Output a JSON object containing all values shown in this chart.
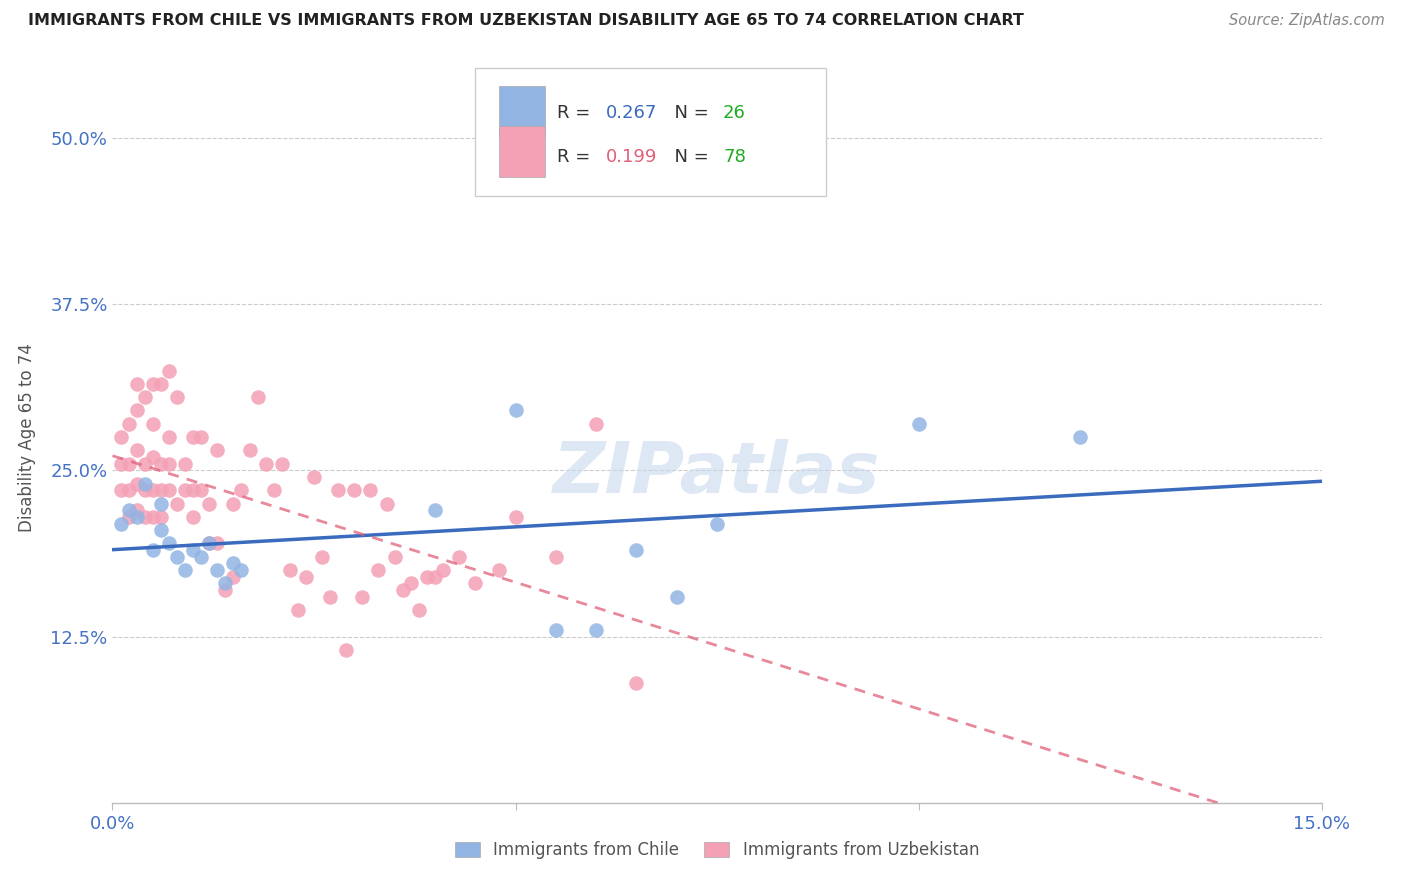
{
  "title": "IMMIGRANTS FROM CHILE VS IMMIGRANTS FROM UZBEKISTAN DISABILITY AGE 65 TO 74 CORRELATION CHART",
  "source": "Source: ZipAtlas.com",
  "ylabel": "Disability Age 65 to 74",
  "xlim": [
    0.0,
    0.15
  ],
  "ylim": [
    0.0,
    0.55
  ],
  "xticks": [
    0.0,
    0.05,
    0.1,
    0.15
  ],
  "xticklabels": [
    "0.0%",
    "",
    "",
    "15.0%"
  ],
  "yticks": [
    0.0,
    0.125,
    0.25,
    0.375,
    0.5
  ],
  "yticklabels": [
    "",
    "12.5%",
    "25.0%",
    "37.5%",
    "50.0%"
  ],
  "chile_R": 0.267,
  "chile_N": 26,
  "uzbekistan_R": 0.199,
  "uzbekistan_N": 78,
  "chile_color": "#92b4e3",
  "uzbekistan_color": "#f4a0b5",
  "chile_line_color": "#3a6bbf",
  "uzbekistan_line_color": "#e0607a",
  "watermark": "ZIPatlas",
  "chile_x": [
    0.001,
    0.002,
    0.003,
    0.004,
    0.005,
    0.006,
    0.006,
    0.007,
    0.008,
    0.009,
    0.01,
    0.011,
    0.012,
    0.013,
    0.014,
    0.015,
    0.016,
    0.04,
    0.05,
    0.055,
    0.06,
    0.065,
    0.07,
    0.075,
    0.1,
    0.12
  ],
  "chile_y": [
    0.21,
    0.22,
    0.215,
    0.24,
    0.19,
    0.205,
    0.225,
    0.195,
    0.185,
    0.175,
    0.19,
    0.185,
    0.195,
    0.175,
    0.165,
    0.18,
    0.175,
    0.22,
    0.295,
    0.13,
    0.13,
    0.19,
    0.155,
    0.21,
    0.285,
    0.275
  ],
  "uzbekistan_x": [
    0.001,
    0.001,
    0.001,
    0.002,
    0.002,
    0.002,
    0.002,
    0.003,
    0.003,
    0.003,
    0.003,
    0.003,
    0.004,
    0.004,
    0.004,
    0.004,
    0.005,
    0.005,
    0.005,
    0.005,
    0.005,
    0.006,
    0.006,
    0.006,
    0.006,
    0.007,
    0.007,
    0.007,
    0.007,
    0.008,
    0.008,
    0.009,
    0.009,
    0.01,
    0.01,
    0.01,
    0.011,
    0.011,
    0.012,
    0.012,
    0.013,
    0.013,
    0.014,
    0.015,
    0.015,
    0.016,
    0.017,
    0.018,
    0.019,
    0.02,
    0.021,
    0.022,
    0.023,
    0.024,
    0.025,
    0.026,
    0.027,
    0.028,
    0.029,
    0.03,
    0.031,
    0.032,
    0.033,
    0.034,
    0.035,
    0.036,
    0.037,
    0.038,
    0.039,
    0.04,
    0.041,
    0.043,
    0.045,
    0.048,
    0.05,
    0.055,
    0.06,
    0.065
  ],
  "uzbekistan_y": [
    0.235,
    0.255,
    0.275,
    0.215,
    0.235,
    0.255,
    0.285,
    0.22,
    0.24,
    0.265,
    0.295,
    0.315,
    0.215,
    0.235,
    0.255,
    0.305,
    0.215,
    0.235,
    0.26,
    0.285,
    0.315,
    0.215,
    0.235,
    0.255,
    0.315,
    0.235,
    0.255,
    0.275,
    0.325,
    0.225,
    0.305,
    0.235,
    0.255,
    0.215,
    0.235,
    0.275,
    0.235,
    0.275,
    0.195,
    0.225,
    0.195,
    0.265,
    0.16,
    0.17,
    0.225,
    0.235,
    0.265,
    0.305,
    0.255,
    0.235,
    0.255,
    0.175,
    0.145,
    0.17,
    0.245,
    0.185,
    0.155,
    0.235,
    0.115,
    0.235,
    0.155,
    0.235,
    0.175,
    0.225,
    0.185,
    0.16,
    0.165,
    0.145,
    0.17,
    0.17,
    0.175,
    0.185,
    0.165,
    0.175,
    0.215,
    0.185,
    0.285,
    0.09
  ]
}
